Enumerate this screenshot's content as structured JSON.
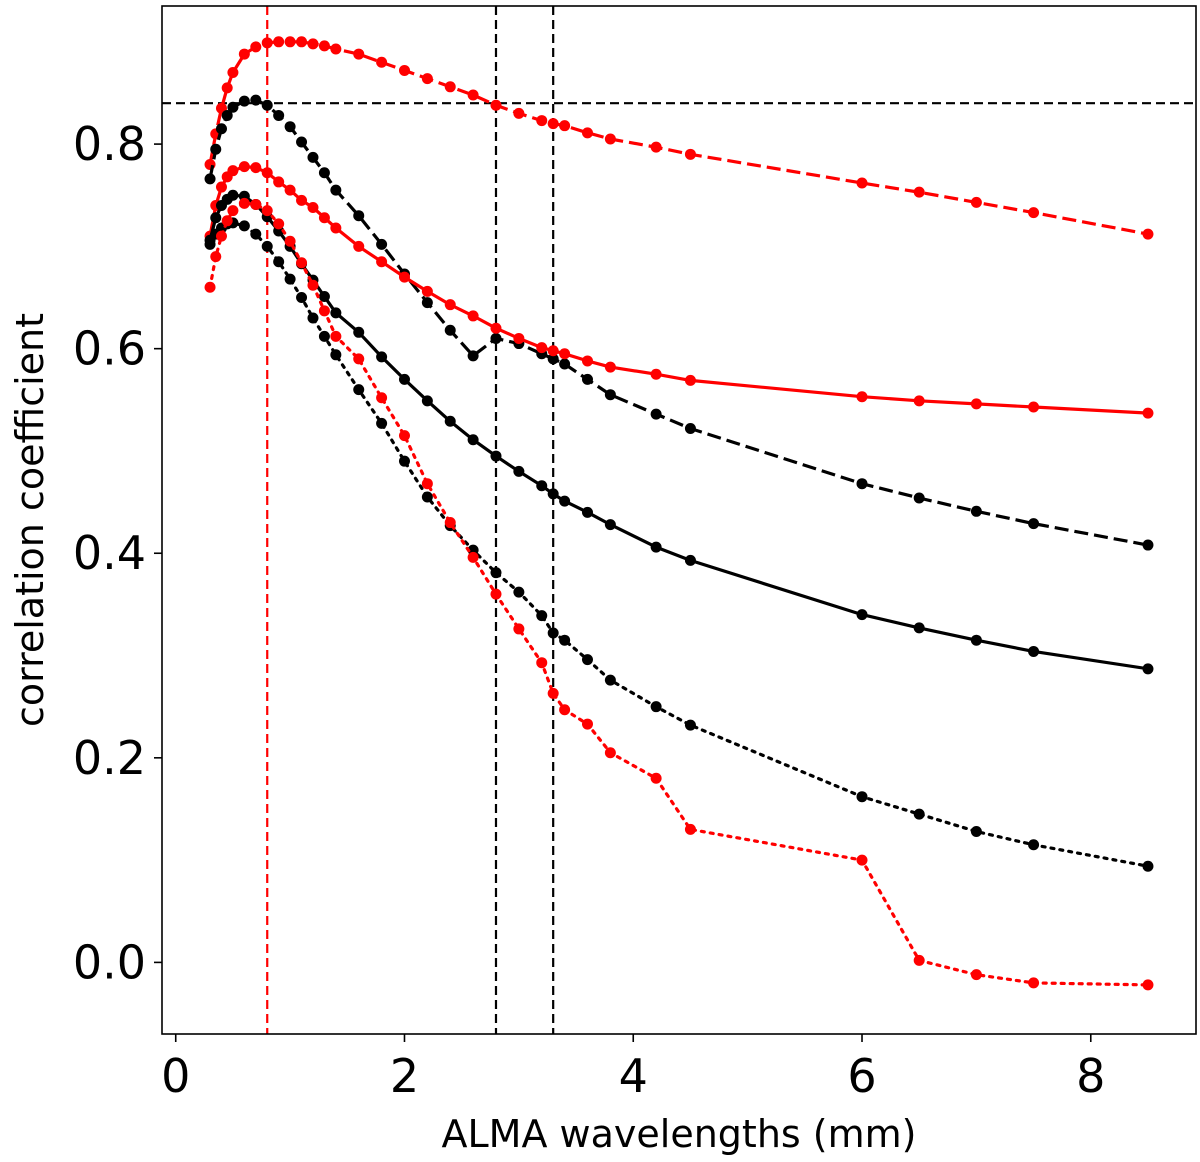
{
  "chart_data": {
    "type": "line",
    "xlabel": "ALMA wavelengths (mm)",
    "ylabel": "correlation coefficient",
    "xlim": [
      -0.12,
      8.92
    ],
    "ylim": [
      -0.07,
      0.935
    ],
    "xticks": [
      0,
      2,
      4,
      6,
      8
    ],
    "xtick_labels": [
      "0",
      "2",
      "4",
      "6",
      "8"
    ],
    "yticks": [
      0.0,
      0.2,
      0.4,
      0.6,
      0.8
    ],
    "ytick_labels": [
      "0.0",
      "0.2",
      "0.4",
      "0.6",
      "0.8"
    ],
    "grid": false,
    "reference_lines": [
      {
        "orientation": "vertical",
        "x": 0.8,
        "color": "#ff0000",
        "style": "dashed"
      },
      {
        "orientation": "vertical",
        "x": 2.8,
        "color": "#000000",
        "style": "dashed"
      },
      {
        "orientation": "vertical",
        "x": 3.3,
        "color": "#000000",
        "style": "dashed"
      },
      {
        "orientation": "horizontal",
        "y": 0.84,
        "color": "#000000",
        "style": "dashed"
      }
    ],
    "x": [
      0.3,
      0.35,
      0.4,
      0.45,
      0.5,
      0.6,
      0.7,
      0.8,
      0.9,
      1.0,
      1.1,
      1.2,
      1.3,
      1.4,
      1.6,
      1.8,
      2.0,
      2.2,
      2.4,
      2.6,
      2.8,
      3.0,
      3.2,
      3.3,
      3.4,
      3.6,
      3.8,
      4.2,
      4.5,
      6.0,
      6.5,
      7.0,
      7.5,
      8.5
    ],
    "series": [
      {
        "color": "#ff0000",
        "style": "dashed",
        "values": [
          0.78,
          0.81,
          0.835,
          0.855,
          0.87,
          0.888,
          0.895,
          0.899,
          0.9,
          0.9,
          0.9,
          0.898,
          0.896,
          0.893,
          0.888,
          0.88,
          0.872,
          0.864,
          0.856,
          0.848,
          0.838,
          0.83,
          0.823,
          0.82,
          0.818,
          0.811,
          0.805,
          0.797,
          0.79,
          0.762,
          0.753,
          0.743,
          0.733,
          0.712
        ]
      },
      {
        "color": "#000000",
        "style": "dashed",
        "values": [
          0.766,
          0.795,
          0.815,
          0.828,
          0.836,
          0.842,
          0.843,
          0.838,
          0.828,
          0.817,
          0.802,
          0.787,
          0.772,
          0.755,
          0.73,
          0.702,
          0.673,
          0.645,
          0.618,
          0.593,
          0.61,
          0.605,
          0.595,
          0.59,
          0.585,
          0.57,
          0.555,
          0.536,
          0.522,
          0.468,
          0.454,
          0.441,
          0.429,
          0.408
        ]
      },
      {
        "color": "#ff0000",
        "style": "solid",
        "values": [
          0.71,
          0.74,
          0.758,
          0.768,
          0.774,
          0.778,
          0.777,
          0.772,
          0.763,
          0.755,
          0.745,
          0.738,
          0.728,
          0.718,
          0.7,
          0.685,
          0.67,
          0.656,
          0.643,
          0.632,
          0.62,
          0.61,
          0.601,
          0.598,
          0.595,
          0.588,
          0.582,
          0.575,
          0.569,
          0.553,
          0.549,
          0.546,
          0.543,
          0.537
        ]
      },
      {
        "color": "#000000",
        "style": "solid",
        "values": [
          0.706,
          0.728,
          0.74,
          0.746,
          0.75,
          0.749,
          0.741,
          0.729,
          0.715,
          0.7,
          0.683,
          0.667,
          0.651,
          0.635,
          0.616,
          0.592,
          0.57,
          0.549,
          0.529,
          0.511,
          0.495,
          0.48,
          0.466,
          0.458,
          0.451,
          0.44,
          0.428,
          0.406,
          0.393,
          0.34,
          0.327,
          0.315,
          0.304,
          0.287
        ]
      },
      {
        "color": "#000000",
        "style": "dotted",
        "values": [
          0.702,
          0.712,
          0.718,
          0.722,
          0.723,
          0.72,
          0.712,
          0.7,
          0.685,
          0.668,
          0.65,
          0.63,
          0.612,
          0.594,
          0.56,
          0.527,
          0.49,
          0.455,
          0.427,
          0.403,
          0.381,
          0.362,
          0.339,
          0.322,
          0.315,
          0.296,
          0.276,
          0.25,
          0.232,
          0.162,
          0.145,
          0.128,
          0.115,
          0.094
        ]
      },
      {
        "color": "#ff0000",
        "style": "dotted",
        "values": [
          0.66,
          0.69,
          0.71,
          0.725,
          0.735,
          0.742,
          0.741,
          0.735,
          0.722,
          0.705,
          0.684,
          0.662,
          0.637,
          0.612,
          0.59,
          0.552,
          0.515,
          0.468,
          0.43,
          0.396,
          0.36,
          0.326,
          0.293,
          0.263,
          0.247,
          0.233,
          0.205,
          0.18,
          0.13,
          0.1,
          0.002,
          -0.012,
          -0.02,
          -0.022
        ]
      }
    ]
  }
}
